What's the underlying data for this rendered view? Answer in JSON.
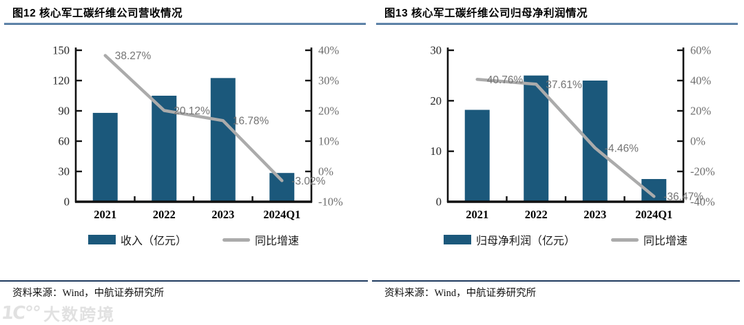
{
  "colors": {
    "bar": "#1b587b",
    "line": "#ababab",
    "data_label": "#737373",
    "axis_spine": "#111111",
    "left_tick_label": "#262626",
    "right_tick_label": "#6f6f6f",
    "x_label": "#000000",
    "title_rule": "#2e5b86",
    "source_rule": "#1f3a5f"
  },
  "watermark": {
    "logo": "1C°°",
    "text": "大数跨境"
  },
  "panels": [
    {
      "title": "图12  核心军工碳纤维公司营收情况",
      "source": "资料来源：Wind，中航证券研究所",
      "legend": [
        {
          "type": "bar",
          "label": "收入（亿元）"
        },
        {
          "type": "line",
          "label": "同比增速"
        }
      ]
    },
    {
      "title": "图13  核心军工碳纤维公司归母净利润情况",
      "source": "资料来源：Wind，中航证券研究所",
      "legend": [
        {
          "type": "bar",
          "label": "归母净利润（亿元）"
        },
        {
          "type": "line",
          "label": "同比增速"
        }
      ]
    }
  ],
  "chart_data": [
    {
      "type": "bar",
      "title": "图12 核心军工碳纤维公司营收情况",
      "categories": [
        "2021",
        "2022",
        "2023",
        "2024Q1"
      ],
      "series": [
        {
          "name": "收入（亿元）",
          "kind": "bar",
          "axis": "left",
          "values": [
            88,
            105,
            122.5,
            28.5
          ]
        },
        {
          "name": "同比增速",
          "kind": "line",
          "axis": "right",
          "values": [
            38.27,
            20.12,
            16.78,
            -3.02
          ],
          "labels": [
            "38.27%",
            "20.12%",
            "16.78%",
            "-3.02%"
          ]
        }
      ],
      "left_axis": {
        "min": 0,
        "max": 150,
        "step": 30,
        "ticks": [
          "0",
          "30",
          "60",
          "90",
          "120",
          "150"
        ]
      },
      "right_axis": {
        "min": -10,
        "max": 40,
        "step": 10,
        "ticks": [
          "-10%",
          "0%",
          "10%",
          "20%",
          "30%",
          "40%"
        ]
      },
      "grid": false,
      "legend_position": "bottom"
    },
    {
      "type": "bar",
      "title": "图13 核心军工碳纤维公司归母净利润情况",
      "categories": [
        "2021",
        "2022",
        "2023",
        "2024Q1"
      ],
      "series": [
        {
          "name": "归母净利润（亿元）",
          "kind": "bar",
          "axis": "left",
          "values": [
            18.2,
            25,
            24,
            4.5
          ]
        },
        {
          "name": "同比增速",
          "kind": "line",
          "axis": "right",
          "values": [
            40.76,
            37.61,
            -4.46,
            -36.47
          ],
          "labels": [
            "40.76%",
            "37.61%",
            "-4.46%",
            "-36.47%"
          ]
        }
      ],
      "left_axis": {
        "min": 0,
        "max": 30,
        "step": 10,
        "ticks": [
          "0",
          "10",
          "20",
          "30"
        ]
      },
      "right_axis": {
        "min": -40,
        "max": 60,
        "step": 20,
        "ticks": [
          "-40%",
          "-20%",
          "0%",
          "20%",
          "40%",
          "60%"
        ]
      },
      "grid": false,
      "legend_position": "bottom"
    }
  ]
}
